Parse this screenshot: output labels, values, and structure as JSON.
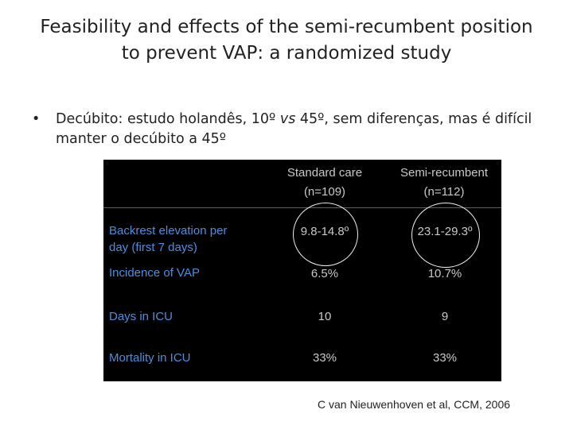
{
  "title": {
    "line1": "Feasibility and effects of the semi-recumbent position",
    "line2": "to prevent VAP: a randomized study"
  },
  "bullet": {
    "marker": "•",
    "prefix": "Decúbito: estudo holandês, 10º ",
    "vs": "vs",
    "suffix": " 45º, sem diferenças, mas é difícil manter o decúbito a 45º"
  },
  "table": {
    "columns": [
      {
        "name": "Standard care",
        "n": "(n=109)"
      },
      {
        "name": "Semi-recumbent",
        "n": "(n=112)"
      }
    ],
    "rows": [
      {
        "label_line1": "Backrest elevation per",
        "label_line2": "day (first 7 days)",
        "values": [
          "9.8-14.8º",
          "23.1-29.3º"
        ]
      },
      {
        "label_line1": "Incidence of VAP",
        "label_line2": "",
        "values": [
          "6.5%",
          "10.7%"
        ]
      },
      {
        "label_line1": "Days in ICU",
        "label_line2": "",
        "values": [
          "10",
          "9"
        ]
      },
      {
        "label_line1": "Mortality in ICU",
        "label_line2": "",
        "values": [
          "33%",
          "33%"
        ]
      }
    ],
    "colors": {
      "background": "#000000",
      "label": "#4a8fe0",
      "value": "#c8c8c8",
      "divider": "#c0392b"
    }
  },
  "citation": "C van Nieuwenhoven et al, CCM, 2006"
}
